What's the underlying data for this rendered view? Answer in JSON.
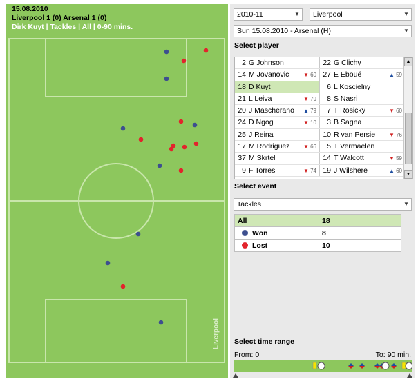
{
  "pitch": {
    "date": "15.08.2010",
    "score_line": "Liverpool 1 (0) Arsenal 1 (0)",
    "filter_line": "Dirk Kuyt | Tackles | All | 0-90 mins.",
    "team_label": "Liverpool"
  },
  "colors": {
    "won": "#3d4f8f",
    "lost": "#e2242c",
    "pitch": "#8dc75d",
    "lines": "#c9e6ac"
  },
  "events_plotted": [
    {
      "result": "won"
    },
    {
      "result": "lost"
    },
    {
      "result": "lost"
    },
    {
      "result": "won"
    },
    {
      "result": "won"
    },
    {
      "result": "lost"
    },
    {
      "result": "won"
    },
    {
      "result": "lost"
    },
    {
      "result": "lost"
    },
    {
      "result": "lost"
    },
    {
      "result": "lost"
    },
    {
      "result": "lost"
    },
    {
      "result": "won"
    },
    {
      "result": "lost"
    },
    {
      "result": "won"
    },
    {
      "result": "won"
    },
    {
      "result": "lost"
    },
    {
      "result": "won"
    }
  ],
  "filters": {
    "season": "2010-11",
    "team": "Liverpool",
    "match": "Sun 15.08.2010 - Arsenal (H)"
  },
  "select_player": {
    "title": "Select player",
    "rows": [
      {
        "left": {
          "num": "2",
          "name": "G Johnson",
          "sub": "",
          "sub_dir": ""
        },
        "right": {
          "num": "22",
          "name": "G Clichy",
          "sub": "",
          "sub_dir": ""
        }
      },
      {
        "left": {
          "num": "14",
          "name": "M Jovanovic",
          "sub": "60",
          "sub_dir": "down"
        },
        "right": {
          "num": "27",
          "name": "E Eboué",
          "sub": "59",
          "sub_dir": "up"
        }
      },
      {
        "left": {
          "num": "18",
          "name": "D Kuyt",
          "sub": "",
          "sub_dir": "",
          "selected": true
        },
        "right": {
          "num": "6",
          "name": "L Koscielny",
          "sub": "",
          "sub_dir": ""
        }
      },
      {
        "left": {
          "num": "21",
          "name": "L Leiva",
          "sub": "79",
          "sub_dir": "down"
        },
        "right": {
          "num": "8",
          "name": "S Nasri",
          "sub": "",
          "sub_dir": ""
        }
      },
      {
        "left": {
          "num": "20",
          "name": "J Mascherano",
          "sub": "79",
          "sub_dir": "up"
        },
        "right": {
          "num": "7",
          "name": "T Rosicky",
          "sub": "60",
          "sub_dir": "down"
        }
      },
      {
        "left": {
          "num": "24",
          "name": "D Ngog",
          "sub": "10",
          "sub_dir": "down"
        },
        "right": {
          "num": "3",
          "name": "B Sagna",
          "sub": "",
          "sub_dir": ""
        }
      },
      {
        "left": {
          "num": "25",
          "name": "J Reina",
          "sub": "",
          "sub_dir": ""
        },
        "right": {
          "num": "10",
          "name": "R van Persie",
          "sub": "76",
          "sub_dir": "down"
        }
      },
      {
        "left": {
          "num": "17",
          "name": "M Rodriguez",
          "sub": "66",
          "sub_dir": "down"
        },
        "right": {
          "num": "5",
          "name": "T Vermaelen",
          "sub": "",
          "sub_dir": ""
        }
      },
      {
        "left": {
          "num": "37",
          "name": "M Skrtel",
          "sub": "",
          "sub_dir": ""
        },
        "right": {
          "num": "14",
          "name": "T Walcott",
          "sub": "59",
          "sub_dir": "down"
        }
      },
      {
        "left": {
          "num": "9",
          "name": "F Torres",
          "sub": "74",
          "sub_dir": "down"
        },
        "right": {
          "num": "19",
          "name": "J Wilshere",
          "sub": "60",
          "sub_dir": "up"
        }
      }
    ]
  },
  "select_event": {
    "title": "Select event",
    "value": "Tackles",
    "table": {
      "all_label": "All",
      "all_value": "18",
      "won_label": "Won",
      "won_value": "8",
      "lost_label": "Lost",
      "lost_value": "10"
    }
  },
  "time_range": {
    "title": "Select time range",
    "from_label": "From: 0",
    "to_label": "To: 90 min."
  },
  "icons": {
    "dropdown": "chevron-down-icon",
    "sub_off": "triangle-down-icon",
    "sub_on": "triangle-up-icon"
  }
}
